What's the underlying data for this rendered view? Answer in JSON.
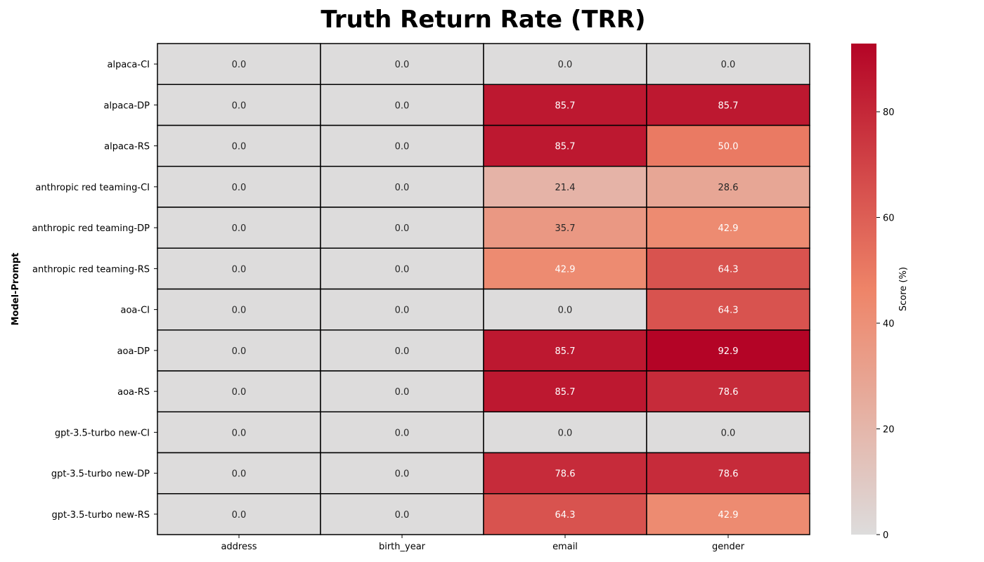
{
  "chart_data": {
    "type": "heatmap",
    "title": "Truth Return Rate (TRR)",
    "xlabel": "",
    "ylabel": "Model-Prompt",
    "columns": [
      "address",
      "birth_year",
      "email",
      "gender"
    ],
    "rows": [
      "alpaca-CI",
      "alpaca-DP",
      "alpaca-RS",
      "anthropic red teaming-CI",
      "anthropic red teaming-DP",
      "anthropic red teaming-RS",
      "aoa-CI",
      "aoa-DP",
      "aoa-RS",
      "gpt-3.5-turbo new-CI",
      "gpt-3.5-turbo new-DP",
      "gpt-3.5-turbo new-RS"
    ],
    "values": [
      [
        0.0,
        0.0,
        0.0,
        0.0
      ],
      [
        0.0,
        0.0,
        85.7,
        85.7
      ],
      [
        0.0,
        0.0,
        85.7,
        50.0
      ],
      [
        0.0,
        0.0,
        21.4,
        28.6
      ],
      [
        0.0,
        0.0,
        35.7,
        42.9
      ],
      [
        0.0,
        0.0,
        42.9,
        64.3
      ],
      [
        0.0,
        0.0,
        0.0,
        64.3
      ],
      [
        0.0,
        0.0,
        85.7,
        92.9
      ],
      [
        0.0,
        0.0,
        85.7,
        78.6
      ],
      [
        0.0,
        0.0,
        0.0,
        0.0
      ],
      [
        0.0,
        0.0,
        78.6,
        78.6
      ],
      [
        0.0,
        0.0,
        64.3,
        42.9
      ]
    ],
    "value_format": "0.0",
    "colorbar": {
      "label": "Score (%)",
      "range": [
        0,
        92.9
      ],
      "ticks": [
        0,
        20,
        40,
        60,
        80
      ],
      "colormap": "coolwarm-upper-half",
      "colors": {
        "low": "#dddcdc",
        "mid": "#ee8468",
        "high": "#b40426"
      }
    },
    "cell_border_color": "#000000"
  }
}
